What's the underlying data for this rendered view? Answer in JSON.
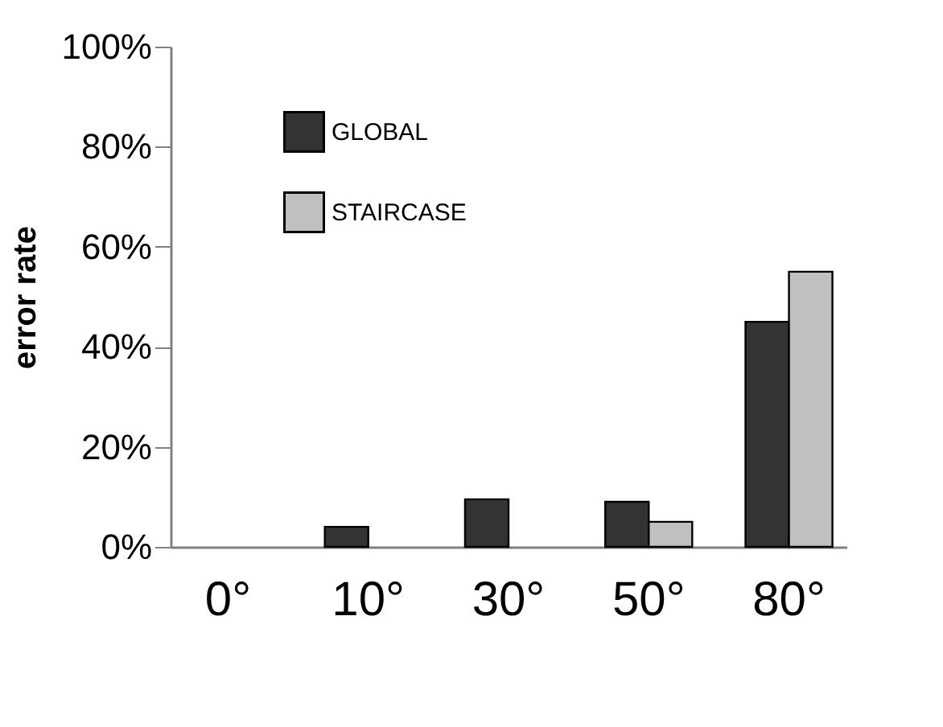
{
  "chart_data": {
    "type": "bar",
    "ylabel": "error rate",
    "categories": [
      "0°",
      "10°",
      "30°",
      "50°",
      "80°"
    ],
    "series": [
      {
        "name": "GLOBAL",
        "color": "#333333",
        "values": [
          0,
          4,
          9.5,
          9,
          45
        ]
      },
      {
        "name": "STAIRCASE",
        "color": "#c0c0c0",
        "values": [
          0,
          0,
          0,
          5,
          55
        ]
      }
    ],
    "ylim": [
      0,
      100
    ],
    "yticks": [
      {
        "value": 0,
        "label": "0%"
      },
      {
        "value": 20,
        "label": "20%"
      },
      {
        "value": 40,
        "label": "40%"
      },
      {
        "value": 60,
        "label": "60%"
      },
      {
        "value": 80,
        "label": "80%"
      },
      {
        "value": 100,
        "label": "100%"
      }
    ],
    "grid": false,
    "legend": "top left"
  }
}
